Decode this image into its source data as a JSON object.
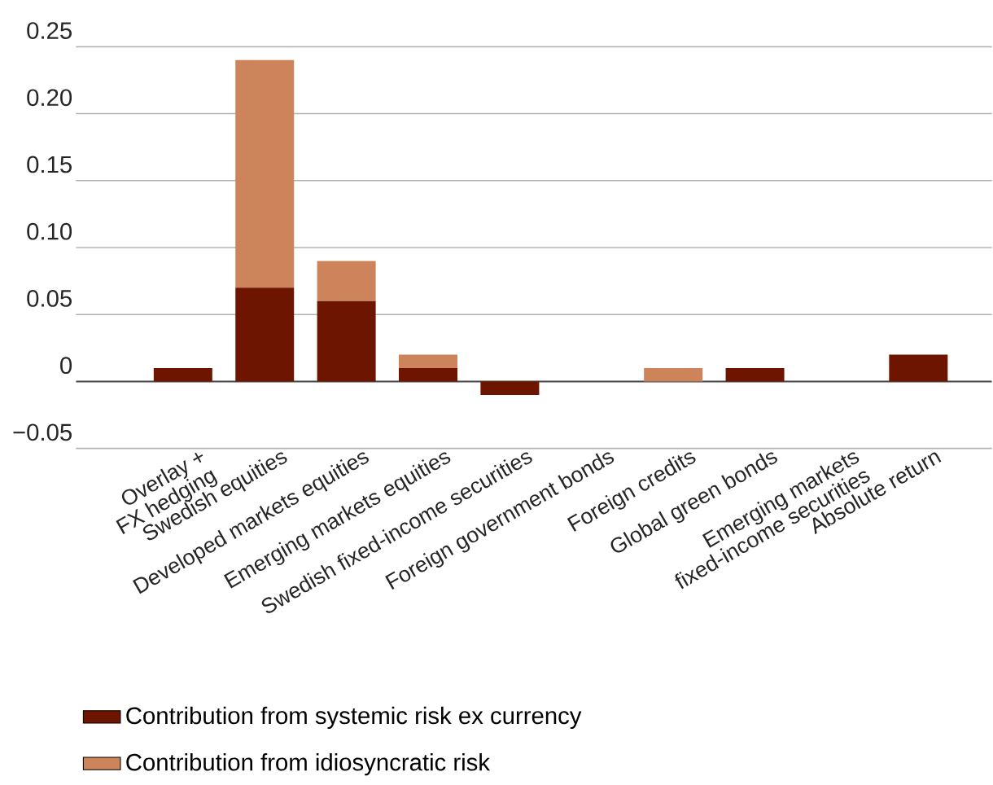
{
  "chart_data": {
    "type": "bar",
    "stacked": true,
    "categories": [
      "Overlay +\nFX hedging",
      "Swedish equities",
      "Developed markets equities",
      "Emerging markets equities",
      "Swedish fixed-income securities",
      "Foreign government bonds",
      "Foreign credits",
      "Global green bonds",
      "Emerging markets\nfixed-income securities",
      "Absolute return"
    ],
    "series": [
      {
        "name": "Contribution from systemic risk ex currency",
        "color": "#6e1500",
        "values": [
          0.01,
          0.07,
          0.06,
          0.01,
          -0.01,
          0,
          0,
          0.01,
          0,
          0.02
        ]
      },
      {
        "name": "Contribution from idiosyncratic risk",
        "color": "#cd845a",
        "values": [
          0,
          0.17,
          0.03,
          0.01,
          0,
          0,
          0.01,
          0,
          0,
          0
        ]
      }
    ],
    "ylim": [
      -0.05,
      0.25
    ],
    "yticks": [
      {
        "value": -0.05,
        "label": "−0.05"
      },
      0,
      {
        "value": 0.05,
        "label": "0.05"
      },
      {
        "value": 0.1,
        "label": "0.10"
      },
      {
        "value": 0.15,
        "label": "0.15"
      },
      {
        "value": 0.2,
        "label": "0.20"
      },
      {
        "value": 0.25,
        "label": "0.25"
      }
    ],
    "grid": "y",
    "legend": "bottom"
  }
}
